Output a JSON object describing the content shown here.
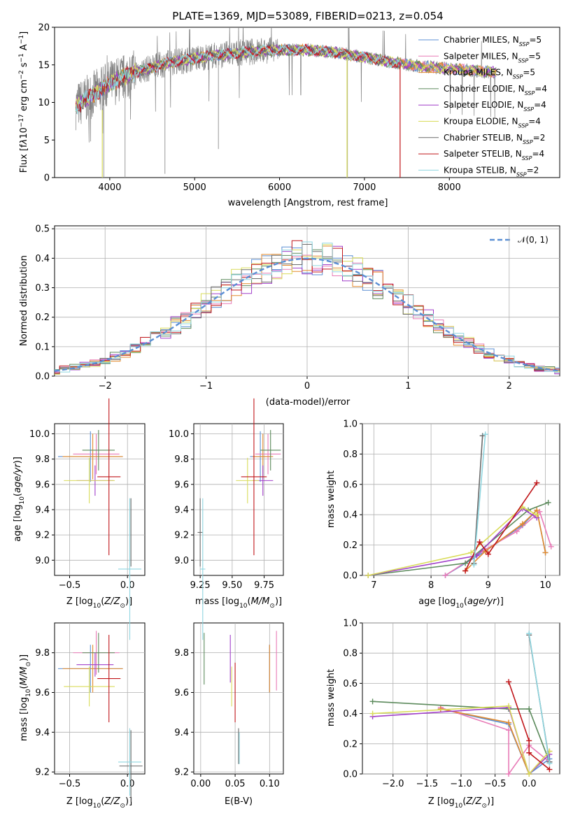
{
  "title": "PLATE=1369, MJD=53089, FIBERID=0213, z=0.054",
  "colors": {
    "Chabrier MILES": "#5b8fd4",
    "Salpeter MILES": "#e87bb7",
    "Kroupa MILES": "#e38a2c",
    "Chabrier ELODIE": "#5c8a5c",
    "Salpeter ELODIE": "#a13fc9",
    "Kroupa ELODIE": "#d9dc5a",
    "Chabrier STELIB": "#6a6a6a",
    "Salpeter STELIB": "#c0161a",
    "Kroupa STELIB": "#8fd6e0",
    "gaussian": "#5b8fd4"
  },
  "chart_data": [
    {
      "id": "spectrum",
      "type": "line",
      "title": "PLATE=1369, MJD=53089, FIBERID=0213, z=0.054",
      "xlabel": "wavelength [Angstrom, rest frame]",
      "ylabel_html": "Flux [f<tspan font-style='italic'>λ</tspan>10<tspan baseline-shift='super' font-size='9'>−17</tspan> erg cm<tspan baseline-shift='super' font-size='9'>−2</tspan> s<tspan baseline-shift='super' font-size='9'>−1</tspan> A<tspan baseline-shift='super' font-size='9'>−1</tspan>]",
      "xlim": [
        3350,
        9300
      ],
      "ylim": [
        0,
        20
      ],
      "xticks": [
        4000,
        5000,
        6000,
        7000,
        8000
      ],
      "yticks": [
        0,
        5,
        10,
        15,
        20
      ],
      "continuum": [
        [
          3600,
          9.5
        ],
        [
          3800,
          11.0
        ],
        [
          4000,
          12.5
        ],
        [
          4300,
          14.0
        ],
        [
          4700,
          15.3
        ],
        [
          5200,
          16.2
        ],
        [
          5800,
          16.9
        ],
        [
          6300,
          17.0
        ],
        [
          6700,
          16.6
        ],
        [
          7000,
          16.0
        ],
        [
          7300,
          15.4
        ],
        [
          7600,
          14.9
        ],
        [
          7900,
          14.6
        ],
        [
          8200,
          14.3
        ],
        [
          8550,
          14.0
        ]
      ],
      "legend_location": "right",
      "legend": [
        {
          "label": "Chabrier MILES, N",
          "sub": "SSP",
          "tail": "=5"
        },
        {
          "label": "Salpeter MILES, N",
          "sub": "SSP",
          "tail": "=5"
        },
        {
          "label": "Kroupa MILES, N",
          "sub": "SSP",
          "tail": "=5"
        },
        {
          "label": "Chabrier ELODIE, N",
          "sub": "SSP",
          "tail": "=4"
        },
        {
          "label": "Salpeter ELODIE, N",
          "sub": "SSP",
          "tail": "=4"
        },
        {
          "label": "Kroupa ELODIE, N",
          "sub": "SSP",
          "tail": "=4"
        },
        {
          "label": "Chabrier STELIB, N",
          "sub": "SSP",
          "tail": "=2"
        },
        {
          "label": "Salpeter STELIB, N",
          "sub": "SSP",
          "tail": "=4"
        },
        {
          "label": "Kroupa STELIB, N",
          "sub": "SSP",
          "tail": "=2"
        }
      ]
    },
    {
      "id": "histogram",
      "type": "bar",
      "xlabel": "(data-model)/error",
      "ylabel": "Normed distribution",
      "xlim": [
        -2.5,
        2.5
      ],
      "ylim": [
        0,
        0.51
      ],
      "xticks": [
        -2,
        -1,
        0,
        1,
        2
      ],
      "yticks": [
        0.0,
        0.1,
        0.2,
        0.3,
        0.4,
        0.5
      ],
      "grid": true,
      "bin_width": 0.1,
      "bin_start": -2.5,
      "gaussian_label": "𝒩(0, 1)",
      "legend_location": "upper right"
    },
    {
      "id": "age-vs-Z",
      "type": "scatter",
      "xlabel": "Z [log10(Z/Z⊙)]",
      "ylabel": "age  [log10(age/yr)]",
      "xlim": [
        -0.63,
        0.15
      ],
      "ylim": [
        8.88,
        10.08
      ],
      "xticks": [
        -0.5,
        0.0
      ],
      "yticks": [
        9.0,
        9.2,
        9.4,
        9.6,
        9.8,
        10.0
      ],
      "points": [
        {
          "model": "Chabrier MILES",
          "x": -0.32,
          "xerr": 0.28,
          "y": 9.82,
          "yerr": 0.2
        },
        {
          "model": "Salpeter MILES",
          "x": -0.27,
          "xerr": 0.2,
          "y": 9.84,
          "yerr": 0.16
        },
        {
          "model": "Kroupa MILES",
          "x": -0.3,
          "xerr": 0.26,
          "y": 9.82,
          "yerr": 0.18
        },
        {
          "model": "Chabrier ELODIE",
          "x": -0.25,
          "xerr": 0.14,
          "y": 9.87,
          "yerr": 0.16
        },
        {
          "model": "Salpeter ELODIE",
          "x": -0.28,
          "xerr": 0.16,
          "y": 9.63,
          "yerr": 0.12
        },
        {
          "model": "Kroupa ELODIE",
          "x": -0.33,
          "xerr": 0.22,
          "y": 9.63,
          "yerr": 0.18
        },
        {
          "model": "Chabrier STELIB",
          "x": 0.03,
          "xerr": 0.0,
          "y": 9.22,
          "yerr": 0.27
        },
        {
          "model": "Salpeter STELIB",
          "x": -0.16,
          "xerr": 0.1,
          "y": 9.66,
          "yerr": 0.62
        },
        {
          "model": "Kroupa STELIB",
          "x": 0.02,
          "xerr": 0.1,
          "y": 8.93,
          "yerr": 0.56
        }
      ]
    },
    {
      "id": "age-vs-mass",
      "type": "scatter",
      "xlabel": "mass [log10(M/M⊙)]",
      "xlim": [
        9.2,
        9.9
      ],
      "ylim": [
        8.88,
        10.08
      ],
      "xticks": [
        9.25,
        9.5,
        9.75
      ],
      "yticks": [
        9.0,
        9.2,
        9.4,
        9.6,
        9.8,
        10.0
      ],
      "points": [
        {
          "model": "Chabrier MILES",
          "x": 9.72,
          "xerr": 0.08,
          "y": 9.82,
          "yerr": 0.2
        },
        {
          "model": "Salpeter MILES",
          "x": 9.78,
          "xerr": 0.1,
          "y": 9.84,
          "yerr": 0.16
        },
        {
          "model": "Kroupa MILES",
          "x": 9.74,
          "xerr": 0.08,
          "y": 9.82,
          "yerr": 0.18
        },
        {
          "model": "Chabrier ELODIE",
          "x": 9.8,
          "xerr": 0.08,
          "y": 9.87,
          "yerr": 0.16
        },
        {
          "model": "Salpeter ELODIE",
          "x": 9.74,
          "xerr": 0.08,
          "y": 9.63,
          "yerr": 0.12
        },
        {
          "model": "Kroupa ELODIE",
          "x": 9.62,
          "xerr": 0.09,
          "y": 9.63,
          "yerr": 0.18
        },
        {
          "model": "Chabrier STELIB",
          "x": 9.25,
          "xerr": 0.02,
          "y": 9.22,
          "yerr": 0.27
        },
        {
          "model": "Salpeter STELIB",
          "x": 9.67,
          "xerr": 0.1,
          "y": 9.66,
          "yerr": 0.62
        },
        {
          "model": "Kroupa STELIB",
          "x": 9.27,
          "xerr": 0.02,
          "y": 8.93,
          "yerr": 0.56
        }
      ]
    },
    {
      "id": "weight-vs-age",
      "type": "line",
      "xlabel": "age  [log10(age/yr)]",
      "ylabel": "mass weight",
      "xlim": [
        6.8,
        10.25
      ],
      "ylim": [
        0,
        1.0
      ],
      "xticks": [
        7,
        8,
        9,
        10
      ],
      "yticks": [
        0.0,
        0.2,
        0.4,
        0.6,
        0.8,
        1.0
      ],
      "series": [
        {
          "model": "Chabrier MILES",
          "x": [
            8.25,
            8.95,
            9.6,
            9.85,
            10.0
          ],
          "y": [
            0.0,
            0.16,
            0.33,
            0.43,
            0.15
          ]
        },
        {
          "model": "Salpeter MILES",
          "x": [
            8.25,
            8.9,
            9.5,
            9.9,
            10.1
          ],
          "y": [
            0.0,
            0.16,
            0.29,
            0.42,
            0.19
          ]
        },
        {
          "model": "Kroupa MILES",
          "x": [
            8.6,
            8.95,
            9.6,
            9.85,
            10.0
          ],
          "y": [
            0.03,
            0.16,
            0.34,
            0.43,
            0.15
          ]
        },
        {
          "model": "Chabrier ELODIE",
          "x": [
            6.9,
            8.6,
            9.7,
            10.05
          ],
          "y": [
            0.0,
            0.08,
            0.43,
            0.48
          ]
        },
        {
          "model": "Salpeter ELODIE",
          "x": [
            6.9,
            8.8,
            9.6,
            9.85
          ],
          "y": [
            0.0,
            0.13,
            0.44,
            0.38
          ]
        },
        {
          "model": "Kroupa ELODIE",
          "x": [
            6.9,
            8.7,
            9.6,
            9.85
          ],
          "y": [
            0.0,
            0.15,
            0.45,
            0.4
          ]
        },
        {
          "model": "Chabrier STELIB",
          "x": [
            8.75,
            8.9
          ],
          "y": [
            0.08,
            0.92
          ]
        },
        {
          "model": "Salpeter STELIB",
          "x": [
            8.6,
            8.85,
            9.0,
            9.85
          ],
          "y": [
            0.03,
            0.22,
            0.14,
            0.61
          ]
        },
        {
          "model": "Kroupa STELIB",
          "x": [
            8.75,
            8.95
          ],
          "y": [
            0.07,
            0.93
          ]
        }
      ]
    },
    {
      "id": "mass-vs-Z",
      "type": "scatter",
      "xlabel": "Z [log10(Z/Z⊙)]",
      "ylabel": "mass [log10(M/M⊙)]",
      "xlim": [
        -0.63,
        0.15
      ],
      "ylim": [
        9.19,
        9.95
      ],
      "xticks": [
        -0.5,
        0.0
      ],
      "yticks": [
        9.2,
        9.4,
        9.6,
        9.8
      ],
      "points": [
        {
          "model": "Chabrier MILES",
          "x": -0.32,
          "xerr": 0.28,
          "y": 9.72,
          "yerr": 0.12
        },
        {
          "model": "Salpeter MILES",
          "x": -0.27,
          "xerr": 0.2,
          "y": 9.8,
          "yerr": 0.11
        },
        {
          "model": "Kroupa MILES",
          "x": -0.3,
          "xerr": 0.26,
          "y": 9.72,
          "yerr": 0.12
        },
        {
          "model": "Chabrier ELODIE",
          "x": -0.25,
          "xerr": 0.14,
          "y": 9.8,
          "yerr": 0.1
        },
        {
          "model": "Salpeter ELODIE",
          "x": -0.28,
          "xerr": 0.16,
          "y": 9.74,
          "yerr": 0.06
        },
        {
          "model": "Kroupa ELODIE",
          "x": -0.33,
          "xerr": 0.22,
          "y": 9.63,
          "yerr": 0.1
        },
        {
          "model": "Chabrier STELIB",
          "x": 0.03,
          "xerr": 0.1,
          "y": 9.23,
          "yerr": 0.18
        },
        {
          "model": "Salpeter STELIB",
          "x": -0.16,
          "xerr": 0.1,
          "y": 9.67,
          "yerr": 0.22
        },
        {
          "model": "Kroupa STELIB",
          "x": 0.02,
          "xerr": 0.1,
          "y": 9.25,
          "yerr": 0.17
        }
      ]
    },
    {
      "id": "mass-vs-ebv",
      "type": "scatter",
      "xlabel": "E(B-V)",
      "xlim": [
        -0.01,
        0.12
      ],
      "ylim": [
        9.19,
        9.95
      ],
      "xticks": [
        0.0,
        0.05,
        0.1
      ],
      "yticks": [
        9.2,
        9.4,
        9.6,
        9.8
      ],
      "points": [
        {
          "model": "Chabrier MILES",
          "x": 0.1,
          "y": 9.72,
          "yerr": 0.12
        },
        {
          "model": "Salpeter MILES",
          "x": 0.11,
          "y": 9.76,
          "yerr": 0.15
        },
        {
          "model": "Kroupa MILES",
          "x": 0.1,
          "y": 9.72,
          "yerr": 0.12
        },
        {
          "model": "Chabrier ELODIE",
          "x": 0.005,
          "y": 9.77,
          "yerr": 0.13
        },
        {
          "model": "Salpeter ELODIE",
          "x": 0.043,
          "y": 9.77,
          "yerr": 0.12
        },
        {
          "model": "Kroupa ELODIE",
          "x": 0.045,
          "y": 9.63,
          "yerr": 0.1
        },
        {
          "model": "Chabrier STELIB",
          "x": 0.055,
          "y": 9.33,
          "yerr": 0.09
        },
        {
          "model": "Salpeter STELIB",
          "x": 0.05,
          "y": 9.6,
          "yerr": 0.15
        },
        {
          "model": "Kroupa STELIB",
          "x": 0.056,
          "y": 9.32,
          "yerr": 0.08
        }
      ]
    },
    {
      "id": "weight-vs-Z",
      "type": "line",
      "xlabel": "Z [log10(Z/Z⊙)]",
      "ylabel": "mass weight",
      "xlim": [
        -2.45,
        0.45
      ],
      "ylim": [
        0,
        1.0
      ],
      "xticks": [
        -2.0,
        -1.5,
        -1.0,
        -0.5,
        0.0
      ],
      "yticks": [
        0.0,
        0.2,
        0.4,
        0.6,
        0.8,
        1.0
      ],
      "series": [
        {
          "model": "Chabrier MILES",
          "x": [
            -1.3,
            -0.3,
            0.0,
            0.3
          ],
          "y": [
            0.43,
            0.33,
            0.0,
            0.1
          ]
        },
        {
          "model": "Salpeter MILES",
          "x": [
            -1.3,
            -0.3,
            -0.3,
            0.0,
            0.3
          ],
          "y": [
            0.44,
            0.29,
            0.0,
            0.19,
            0.08
          ]
        },
        {
          "model": "Kroupa MILES",
          "x": [
            -1.3,
            -0.3,
            0.0,
            0.3
          ],
          "y": [
            0.43,
            0.34,
            0.0,
            0.15
          ]
        },
        {
          "model": "Chabrier ELODIE",
          "x": [
            -2.3,
            -0.3,
            0.0,
            0.3
          ],
          "y": [
            0.48,
            0.43,
            0.43,
            0.08
          ]
        },
        {
          "model": "Salpeter ELODIE",
          "x": [
            -2.3,
            -0.3,
            0.0,
            0.3
          ],
          "y": [
            0.38,
            0.44,
            0.0,
            0.13
          ]
        },
        {
          "model": "Kroupa ELODIE",
          "x": [
            -2.3,
            -0.3,
            0.0,
            0.3
          ],
          "y": [
            0.4,
            0.45,
            0.0,
            0.15
          ]
        },
        {
          "model": "Chabrier STELIB",
          "x": [
            0.0,
            0.3
          ],
          "y": [
            0.92,
            0.08
          ]
        },
        {
          "model": "Salpeter STELIB",
          "x": [
            -0.3,
            0.0,
            0.0,
            0.3
          ],
          "y": [
            0.61,
            0.22,
            0.14,
            0.03
          ]
        },
        {
          "model": "Kroupa STELIB",
          "x": [
            0.0,
            0.3
          ],
          "y": [
            0.93,
            0.07
          ]
        }
      ]
    }
  ]
}
